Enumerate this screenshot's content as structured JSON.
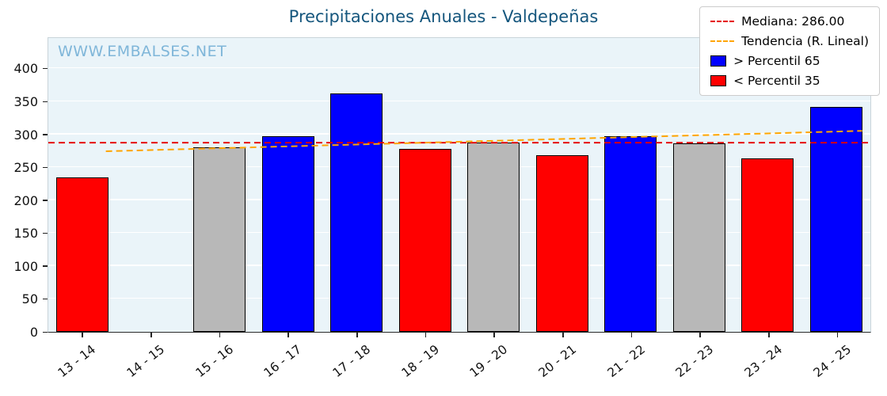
{
  "title": "Precipitaciones Anuales - Valdepeñas",
  "watermark": "WWW.EMBALSES.NET",
  "chart_data": {
    "type": "bar",
    "title": "Precipitaciones Anuales - Valdepeñas",
    "xlabel": "",
    "ylabel": "",
    "categories": [
      "13 - 14",
      "14 - 15",
      "15 - 16",
      "16 - 17",
      "17 - 18",
      "18 - 19",
      "19 - 20",
      "20 - 21",
      "21 - 22",
      "22 - 23",
      "23 - 24",
      "24 - 25"
    ],
    "values": [
      235,
      0,
      280,
      297,
      362,
      278,
      287,
      268,
      297,
      286,
      264,
      341
    ],
    "bar_classes": [
      "below",
      "none",
      "mid",
      "above",
      "above",
      "below",
      "mid",
      "below",
      "above",
      "mid",
      "below",
      "above"
    ],
    "ylim": [
      0,
      445
    ],
    "yticks": [
      0,
      50,
      100,
      150,
      200,
      250,
      300,
      350,
      400
    ],
    "grid": true,
    "median": 286.0,
    "trend": {
      "start_value": 273,
      "end_value": 304,
      "x_start_frac": 0.07,
      "x_end_frac": 0.99
    },
    "legend_position": "top-right",
    "legend": [
      {
        "type": "dashed-line",
        "color": "#e50000",
        "label": "Mediana: 286.00"
      },
      {
        "type": "dashed-line",
        "color": "#ffa500",
        "label": "Tendencia (R. Lineal)"
      },
      {
        "type": "swatch",
        "color": "#0000ff",
        "label": "> Percentil 65"
      },
      {
        "type": "swatch",
        "color": "#ff0000",
        "label": "< Percentil 35"
      }
    ],
    "colors": {
      "above": "#0000ff",
      "below": "#ff0000",
      "mid": "#b8b8b8",
      "bar_edge": "#000000",
      "median_line": "#e50000",
      "trend_line": "#ffa500",
      "plot_bg": "#eaf4f9",
      "grid_line": "#ffffff",
      "title": "#15567d",
      "watermark": "#7fb6d9"
    }
  }
}
